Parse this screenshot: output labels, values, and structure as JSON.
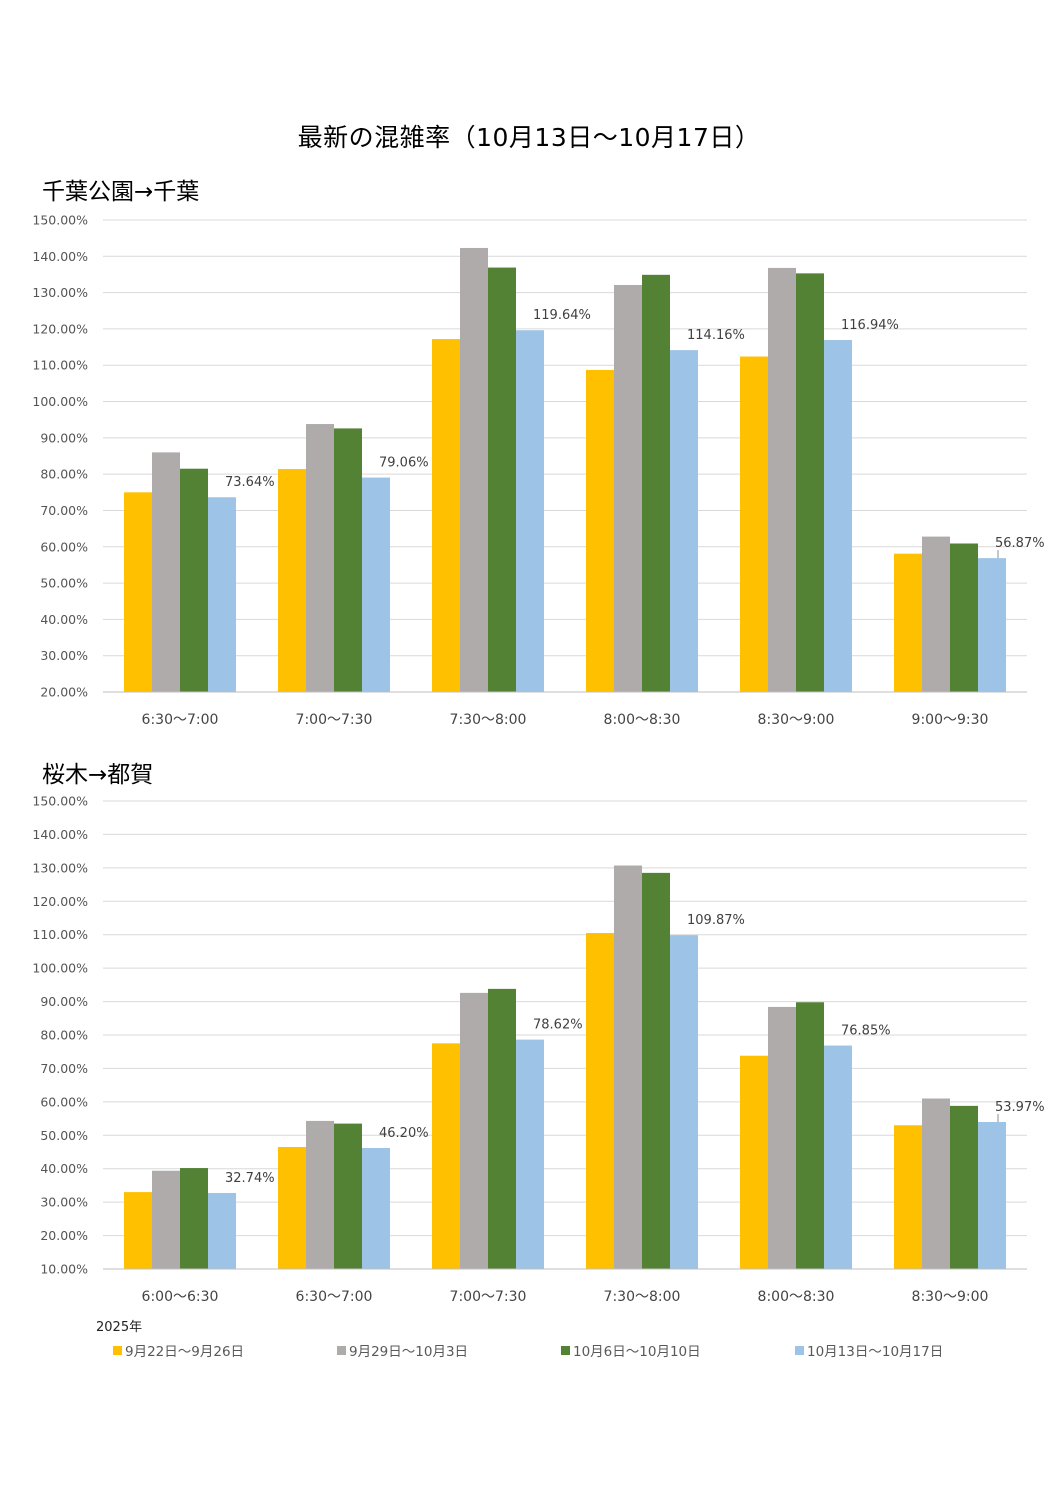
{
  "page_title": "最新の混雑率（10月13日～10月17日）",
  "year_label": "2025年",
  "legend": [
    {
      "label": "9月22日～9月26日",
      "color": "#FFC000"
    },
    {
      "label": "9月29日～10月3日",
      "color": "#AFABAB"
    },
    {
      "label": "10月6日～10月10日",
      "color": "#548235"
    },
    {
      "label": "10月13日～10月17日",
      "color": "#9DC3E6"
    }
  ],
  "chart_data": [
    {
      "type": "bar",
      "title": "千葉公園→千葉",
      "categories": [
        "6:30～7:00",
        "7:00～7:30",
        "7:30～8:00",
        "8:00～8:30",
        "8:30～9:00",
        "9:00～9:30"
      ],
      "ylim": [
        20,
        150
      ],
      "ytick_step": 10,
      "y_tick_format": "percent_2dp",
      "series": [
        {
          "name": "9月22日～9月26日",
          "values": [
            75.0,
            81.4,
            117.2,
            108.7,
            112.4,
            58.1
          ]
        },
        {
          "name": "9月29日～10月3日",
          "values": [
            86.0,
            93.8,
            142.3,
            132.1,
            136.8,
            62.8
          ]
        },
        {
          "name": "10月6日～10月10日",
          "values": [
            81.5,
            92.6,
            136.9,
            134.9,
            135.3,
            60.9
          ]
        },
        {
          "name": "10月13日～10月17日",
          "values": [
            73.64,
            79.06,
            119.64,
            114.16,
            116.94,
            56.87
          ]
        }
      ],
      "data_labels": [
        "73.64%",
        "79.06%",
        "119.64%",
        "114.16%",
        "116.94%",
        "56.87%"
      ]
    },
    {
      "type": "bar",
      "title": "桜木→都賀",
      "categories": [
        "6:00～6:30",
        "6:30～7:00",
        "7:00～7:30",
        "7:30～8:00",
        "8:00～8:30",
        "8:30～9:00"
      ],
      "ylim": [
        10,
        150
      ],
      "ytick_step": 10,
      "y_tick_format": "percent_2dp",
      "series": [
        {
          "name": "9月22日～9月26日",
          "values": [
            33.0,
            46.5,
            77.5,
            110.5,
            73.8,
            53.0
          ]
        },
        {
          "name": "9月29日～10月3日",
          "values": [
            39.4,
            54.3,
            92.6,
            130.7,
            88.4,
            61.0
          ]
        },
        {
          "name": "10月6日～10月10日",
          "values": [
            40.2,
            53.5,
            93.8,
            128.5,
            89.8,
            58.8
          ]
        },
        {
          "name": "10月13日～10月17日",
          "values": [
            32.74,
            46.2,
            78.62,
            109.87,
            76.85,
            53.97
          ]
        }
      ],
      "data_labels": [
        "32.74%",
        "46.20%",
        "78.62%",
        "109.87%",
        "76.85%",
        "53.97%"
      ]
    }
  ]
}
